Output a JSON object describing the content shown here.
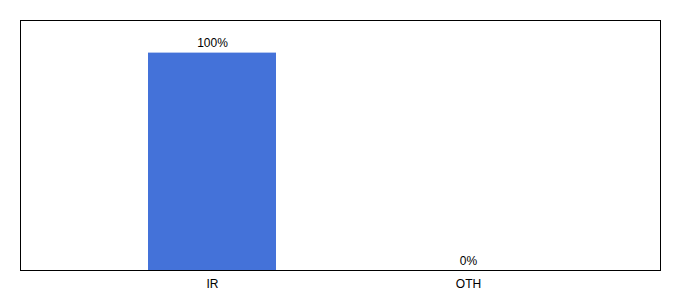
{
  "chart_data": {
    "type": "bar",
    "categories": [
      "IR",
      "OTH"
    ],
    "values": [
      100,
      0
    ],
    "value_labels": [
      "100%",
      "0%"
    ],
    "data_labels": true,
    "color": "#4472d9",
    "ylim": [
      0,
      115
    ],
    "yticks": [],
    "tick_labels": "x"
  }
}
